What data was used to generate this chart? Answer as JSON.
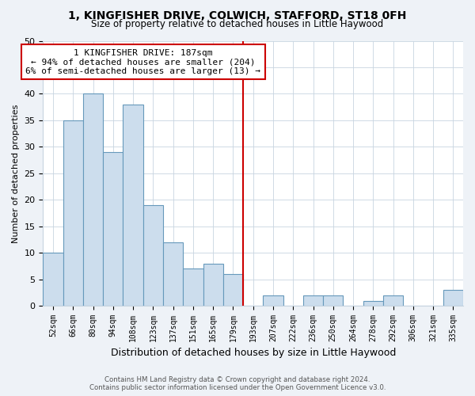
{
  "title": "1, KINGFISHER DRIVE, COLWICH, STAFFORD, ST18 0FH",
  "subtitle": "Size of property relative to detached houses in Little Haywood",
  "xlabel": "Distribution of detached houses by size in Little Haywood",
  "ylabel": "Number of detached properties",
  "bin_labels": [
    "52sqm",
    "66sqm",
    "80sqm",
    "94sqm",
    "108sqm",
    "123sqm",
    "137sqm",
    "151sqm",
    "165sqm",
    "179sqm",
    "193sqm",
    "207sqm",
    "222sqm",
    "236sqm",
    "250sqm",
    "264sqm",
    "278sqm",
    "292sqm",
    "306sqm",
    "321sqm",
    "335sqm"
  ],
  "bar_heights": [
    10,
    35,
    40,
    29,
    38,
    19,
    12,
    7,
    8,
    6,
    0,
    2,
    0,
    2,
    2,
    0,
    1,
    2,
    0,
    0,
    3
  ],
  "bar_color": "#ccdded",
  "bar_edge_color": "#6699bb",
  "vline_x_index": 10,
  "vline_color": "#cc0000",
  "annotation_line1": "1 KINGFISHER DRIVE: 187sqm",
  "annotation_line2": "← 94% of detached houses are smaller (204)",
  "annotation_line3": "6% of semi-detached houses are larger (13) →",
  "ylim": [
    0,
    50
  ],
  "yticks": [
    0,
    5,
    10,
    15,
    20,
    25,
    30,
    35,
    40,
    45,
    50
  ],
  "footer_line1": "Contains HM Land Registry data © Crown copyright and database right 2024.",
  "footer_line2": "Contains public sector information licensed under the Open Government Licence v3.0.",
  "bg_color": "#eef2f7",
  "plot_bg_color": "#ffffff",
  "grid_color": "#c8d4e0"
}
